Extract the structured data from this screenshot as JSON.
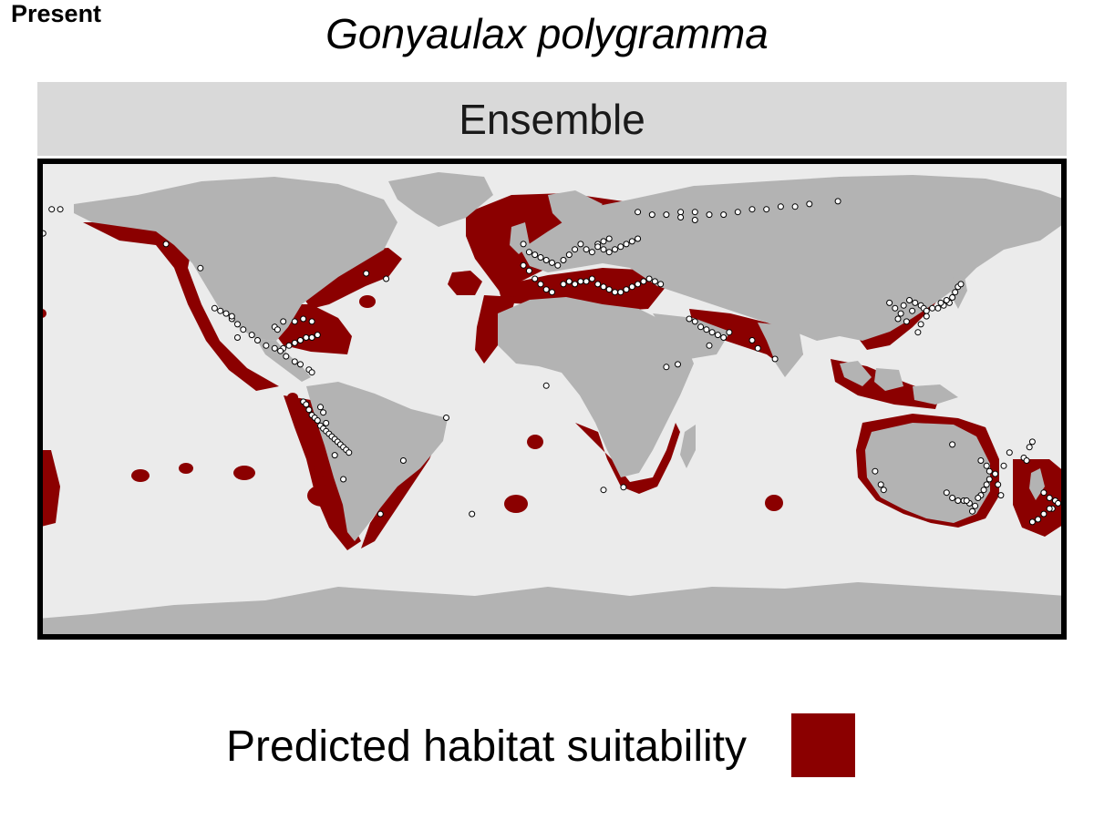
{
  "period_label": "Present",
  "title": "Gonyaulax polygramma",
  "panel_label": "Ensemble",
  "legend": {
    "label": "Predicted habitat suitability"
  },
  "colors": {
    "ocean": "#ebebeb",
    "land": "#b3b3b3",
    "suitable": "#8b0000",
    "occurrence_fill": "#ffffff",
    "occurrence_stroke": "#000000",
    "frame": "#000000",
    "strip": "#d9d9d9"
  },
  "map": {
    "projection": "equirectangular",
    "extent": {
      "lon": [
        -180,
        180
      ],
      "lat": [
        -90,
        90
      ]
    },
    "occurrences": [
      [
        -175,
        71
      ],
      [
        -172,
        71
      ],
      [
        -178,
        62
      ],
      [
        -135,
        58
      ],
      [
        -123,
        49
      ],
      [
        -118,
        34
      ],
      [
        -116,
        33
      ],
      [
        -114,
        32
      ],
      [
        -112,
        30
      ],
      [
        -110,
        28
      ],
      [
        -108,
        26
      ],
      [
        -105,
        24
      ],
      [
        -103,
        22
      ],
      [
        -100,
        20
      ],
      [
        -97,
        19
      ],
      [
        -94,
        19
      ],
      [
        -92,
        20
      ],
      [
        -90,
        21
      ],
      [
        -88,
        22
      ],
      [
        -86,
        23
      ],
      [
        -84,
        23
      ],
      [
        -82,
        24
      ],
      [
        -97,
        27
      ],
      [
        -96,
        26
      ],
      [
        -94,
        29
      ],
      [
        -90,
        29
      ],
      [
        -87,
        30
      ],
      [
        -84,
        29
      ],
      [
        -95,
        18
      ],
      [
        -93,
        16
      ],
      [
        -90,
        14
      ],
      [
        -88,
        13
      ],
      [
        -85,
        11
      ],
      [
        -84,
        10
      ],
      [
        -112,
        31
      ],
      [
        -110,
        23
      ],
      [
        -87,
        -1
      ],
      [
        -86,
        -2
      ],
      [
        -85,
        -4
      ],
      [
        -84,
        -6
      ],
      [
        -83,
        -7
      ],
      [
        -82,
        -8
      ],
      [
        -81,
        -10
      ],
      [
        -80,
        -11
      ],
      [
        -79,
        -12
      ],
      [
        -78,
        -13
      ],
      [
        -77,
        -14
      ],
      [
        -76,
        -15
      ],
      [
        -75,
        -16
      ],
      [
        -74,
        -17
      ],
      [
        -73,
        -18
      ],
      [
        -72,
        -19
      ],
      [
        -71,
        -20
      ],
      [
        -81,
        -3
      ],
      [
        -80,
        -5
      ],
      [
        -79,
        -9
      ],
      [
        -76,
        -21
      ],
      [
        -73,
        -30
      ],
      [
        -60,
        -43
      ],
      [
        -52,
        -23
      ],
      [
        -37,
        -7
      ],
      [
        -58,
        45
      ],
      [
        -65,
        47
      ],
      [
        -10,
        58
      ],
      [
        -8,
        55
      ],
      [
        -6,
        54
      ],
      [
        -4,
        53
      ],
      [
        -2,
        52
      ],
      [
        0,
        51
      ],
      [
        2,
        50
      ],
      [
        4,
        52
      ],
      [
        6,
        54
      ],
      [
        8,
        56
      ],
      [
        10,
        58
      ],
      [
        12,
        56
      ],
      [
        14,
        55
      ],
      [
        16,
        58
      ],
      [
        18,
        59
      ],
      [
        20,
        60
      ],
      [
        -10,
        50
      ],
      [
        -8,
        48
      ],
      [
        -6,
        45
      ],
      [
        -4,
        43
      ],
      [
        -2,
        41
      ],
      [
        0,
        40
      ],
      [
        4,
        43
      ],
      [
        6,
        44
      ],
      [
        8,
        43
      ],
      [
        10,
        44
      ],
      [
        12,
        44
      ],
      [
        14,
        45
      ],
      [
        16,
        43
      ],
      [
        18,
        42
      ],
      [
        20,
        41
      ],
      [
        22,
        40
      ],
      [
        24,
        40
      ],
      [
        26,
        41
      ],
      [
        28,
        42
      ],
      [
        30,
        43
      ],
      [
        32,
        44
      ],
      [
        34,
        45
      ],
      [
        36,
        44
      ],
      [
        38,
        43
      ],
      [
        30,
        60
      ],
      [
        28,
        59
      ],
      [
        26,
        58
      ],
      [
        24,
        57
      ],
      [
        22,
        56
      ],
      [
        20,
        55
      ],
      [
        18,
        56
      ],
      [
        16,
        57
      ],
      [
        30,
        70
      ],
      [
        35,
        69
      ],
      [
        40,
        69
      ],
      [
        45,
        70
      ],
      [
        50,
        70
      ],
      [
        55,
        69
      ],
      [
        60,
        69
      ],
      [
        65,
        70
      ],
      [
        70,
        71
      ],
      [
        75,
        71
      ],
      [
        80,
        72
      ],
      [
        85,
        72
      ],
      [
        90,
        73
      ],
      [
        100,
        74
      ],
      [
        45,
        68
      ],
      [
        50,
        67
      ],
      [
        48,
        30
      ],
      [
        50,
        29
      ],
      [
        52,
        27
      ],
      [
        54,
        26
      ],
      [
        56,
        25
      ],
      [
        58,
        24
      ],
      [
        60,
        23
      ],
      [
        55,
        20
      ],
      [
        62,
        25
      ],
      [
        70,
        22
      ],
      [
        72,
        19
      ],
      [
        78,
        15
      ],
      [
        40,
        12
      ],
      [
        44,
        13
      ],
      [
        18,
        -34
      ],
      [
        25,
        -33
      ],
      [
        -2,
        5
      ],
      [
        -28,
        -43
      ],
      [
        118,
        36
      ],
      [
        120,
        34
      ],
      [
        122,
        32
      ],
      [
        121,
        30
      ],
      [
        123,
        35
      ],
      [
        125,
        37
      ],
      [
        127,
        36
      ],
      [
        129,
        35
      ],
      [
        130,
        34
      ],
      [
        131,
        33
      ],
      [
        133,
        34
      ],
      [
        135,
        34
      ],
      [
        137,
        35
      ],
      [
        139,
        36
      ],
      [
        140,
        38
      ],
      [
        141,
        40
      ],
      [
        142,
        42
      ],
      [
        143,
        43
      ],
      [
        128,
        25
      ],
      [
        129,
        28
      ],
      [
        131,
        31
      ],
      [
        126,
        33
      ],
      [
        138,
        37
      ],
      [
        136,
        36
      ],
      [
        124,
        29
      ],
      [
        140,
        -17
      ],
      [
        150,
        -23
      ],
      [
        152,
        -25
      ],
      [
        153,
        -27
      ],
      [
        153,
        -30
      ],
      [
        152,
        -32
      ],
      [
        151,
        -34
      ],
      [
        150,
        -36
      ],
      [
        149,
        -37
      ],
      [
        146,
        -39
      ],
      [
        144,
        -38
      ],
      [
        142,
        -38
      ],
      [
        140,
        -37
      ],
      [
        138,
        -35
      ],
      [
        145,
        -38
      ],
      [
        147,
        -42
      ],
      [
        148,
        -40
      ],
      [
        116,
        -34
      ],
      [
        115,
        -32
      ],
      [
        113,
        -27
      ],
      [
        160,
        -20
      ],
      [
        165,
        -22
      ],
      [
        166,
        -23
      ],
      [
        167,
        -18
      ],
      [
        168,
        -16
      ],
      [
        172,
        -35
      ],
      [
        174,
        -37
      ],
      [
        176,
        -38
      ],
      [
        177,
        -39
      ],
      [
        175,
        -41
      ],
      [
        174,
        -41
      ],
      [
        172,
        -43
      ],
      [
        170,
        -45
      ],
      [
        168,
        -46
      ],
      [
        158,
        -25
      ],
      [
        155,
        -28
      ],
      [
        156,
        -32
      ],
      [
        157,
        -36
      ]
    ]
  }
}
